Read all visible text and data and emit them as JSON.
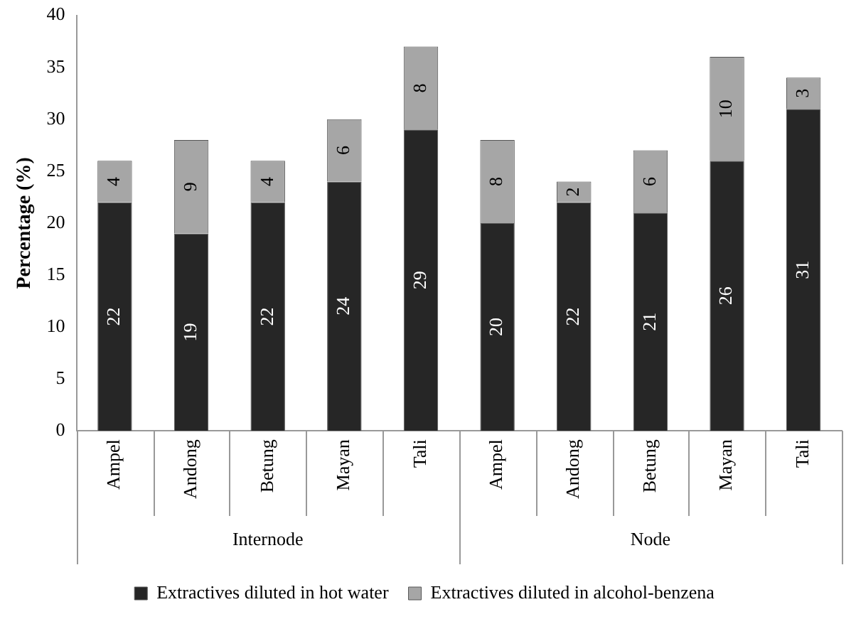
{
  "chart_data": {
    "type": "bar",
    "stacked": true,
    "ylabel": "Percentage (%)",
    "categories": [
      "Ampel",
      "Andong",
      "Betung",
      "Mayan",
      "Tali",
      "Ampel",
      "Andong",
      "Betung",
      "Mayan",
      "Tali"
    ],
    "series": [
      {
        "name": "Extractives diluted in hot water",
        "color": "#262626",
        "values": [
          22,
          19,
          22,
          24,
          29,
          20,
          22,
          21,
          26,
          31
        ]
      },
      {
        "name": "Extractives diluted in alcohol-benzena",
        "color": "#a6a6a6",
        "values": [
          4,
          9,
          4,
          6,
          8,
          8,
          2,
          6,
          10,
          3
        ]
      }
    ],
    "ylim": [
      0,
      40
    ],
    "yticks": [
      0,
      5,
      10,
      15,
      20,
      25,
      30,
      35,
      40
    ],
    "grid": false,
    "legend": "bottom",
    "data_labels": true,
    "annotations": [
      "Internode",
      "Node"
    ]
  }
}
